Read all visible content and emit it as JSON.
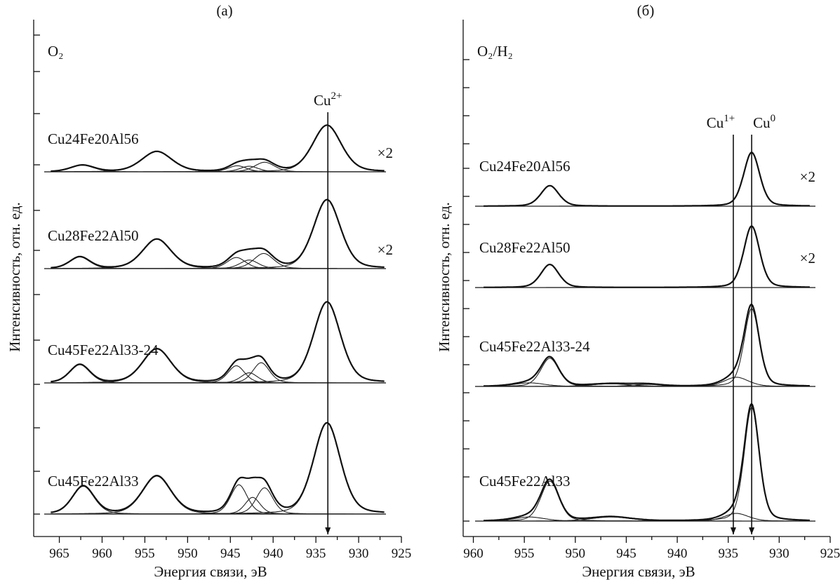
{
  "chart_data": [
    {
      "type": "line",
      "panel_label": "(а)",
      "atmosphere_label": "O₂",
      "xlabel": "Энергия связи, эВ",
      "ylabel": "Интенсивность, отн. ед.",
      "xlim": [
        968,
        925
      ],
      "x_ticks": [
        965,
        960,
        955,
        950,
        945,
        940,
        935,
        930,
        925
      ],
      "x_tick_labels": [
        "965",
        "960",
        "955",
        "950",
        "945",
        "940",
        "935",
        "930",
        "925"
      ],
      "x_reversed": true,
      "markers": [
        {
          "label": "Cu",
          "superscript": "2+",
          "x": 933.6
        }
      ],
      "series": [
        {
          "name": "Cu24Fe20Al56",
          "multiplier": "×2",
          "peaks": [
            {
              "center": 962.3,
              "height": 0.13,
              "width": 1.4
            },
            {
              "center": 953.6,
              "height": 0.4,
              "width": 1.8
            },
            {
              "center": 944.2,
              "height": 0.12,
              "width": 1.1
            },
            {
              "center": 942.8,
              "height": 0.11,
              "width": 1.1
            },
            {
              "center": 941.0,
              "height": 0.19,
              "width": 1.2
            },
            {
              "center": 933.7,
              "height": 0.92,
              "width": 1.7
            }
          ]
        },
        {
          "name": "Cu28Fe22Al50",
          "multiplier": "×2",
          "peaks": [
            {
              "center": 962.6,
              "height": 0.23,
              "width": 1.2
            },
            {
              "center": 953.6,
              "height": 0.58,
              "width": 1.7
            },
            {
              "center": 944.3,
              "height": 0.22,
              "width": 1.1
            },
            {
              "center": 942.8,
              "height": 0.17,
              "width": 1.1
            },
            {
              "center": 941.1,
              "height": 0.3,
              "width": 1.2
            },
            {
              "center": 933.7,
              "height": 1.36,
              "width": 1.6
            }
          ]
        },
        {
          "name": "Cu45Fe22Al33-24",
          "multiplier": "",
          "peaks": [
            {
              "center": 962.6,
              "height": 0.36,
              "width": 1.2
            },
            {
              "center": 953.6,
              "height": 0.67,
              "width": 1.7
            },
            {
              "center": 944.3,
              "height": 0.34,
              "width": 1.0
            },
            {
              "center": 942.8,
              "height": 0.2,
              "width": 1.0
            },
            {
              "center": 941.4,
              "height": 0.4,
              "width": 1.0
            },
            {
              "center": 933.7,
              "height": 1.6,
              "width": 1.6
            }
          ]
        },
        {
          "name": "Cu45Fe22Al33",
          "multiplier": "",
          "peaks": [
            {
              "center": 962.2,
              "height": 0.55,
              "width": 1.3
            },
            {
              "center": 953.6,
              "height": 0.75,
              "width": 1.7
            },
            {
              "center": 944.0,
              "height": 0.58,
              "width": 1.0
            },
            {
              "center": 942.4,
              "height": 0.33,
              "width": 0.9
            },
            {
              "center": 941.0,
              "height": 0.52,
              "width": 1.0
            },
            {
              "center": 933.7,
              "height": 1.8,
              "width": 1.6
            }
          ]
        }
      ]
    },
    {
      "type": "line",
      "panel_label": "(б)",
      "atmosphere_label": "O₂/H₂",
      "xlabel": "Энергия связи, эВ",
      "ylabel": "Интенсивность, отн. ед.",
      "xlim": [
        961,
        925
      ],
      "x_ticks": [
        960,
        955,
        950,
        945,
        940,
        935,
        930,
        925
      ],
      "x_tick_labels": [
        "960",
        "955",
        "950",
        "945",
        "940",
        "935",
        "930",
        "925"
      ],
      "x_reversed": true,
      "markers": [
        {
          "label": "Cu",
          "superscript": "1+",
          "x": 934.5
        },
        {
          "label": "Cu",
          "superscript": "0",
          "x": 932.7
        }
      ],
      "series": [
        {
          "name": "Cu24Fe20Al56",
          "multiplier": "×2",
          "peaks": [
            {
              "center": 952.5,
              "height": 0.4,
              "width": 0.9
            },
            {
              "center": 932.7,
              "height": 1.05,
              "width": 0.8
            }
          ]
        },
        {
          "name": "Cu28Fe22Al50",
          "multiplier": "×2",
          "peaks": [
            {
              "center": 952.5,
              "height": 0.45,
              "width": 0.9
            },
            {
              "center": 932.7,
              "height": 1.2,
              "width": 0.8
            }
          ]
        },
        {
          "name": "Cu45Fe22Al33-24",
          "multiplier": "",
          "peaks": [
            {
              "center": 954.5,
              "height": 0.07,
              "width": 1.5
            },
            {
              "center": 952.5,
              "height": 0.55,
              "width": 0.9
            },
            {
              "center": 946.5,
              "height": 0.05,
              "width": 2.0
            },
            {
              "center": 943.0,
              "height": 0.04,
              "width": 1.5
            },
            {
              "center": 934.2,
              "height": 0.18,
              "width": 1.2
            },
            {
              "center": 932.7,
              "height": 1.52,
              "width": 0.75
            }
          ]
        },
        {
          "name": "Cu45Fe22Al33",
          "multiplier": "",
          "peaks": [
            {
              "center": 954.5,
              "height": 0.08,
              "width": 1.5
            },
            {
              "center": 952.5,
              "height": 0.78,
              "width": 0.9
            },
            {
              "center": 946.5,
              "height": 0.08,
              "width": 2.0
            },
            {
              "center": 934.2,
              "height": 0.15,
              "width": 1.2
            },
            {
              "center": 932.7,
              "height": 2.22,
              "width": 0.75
            }
          ]
        }
      ]
    }
  ]
}
